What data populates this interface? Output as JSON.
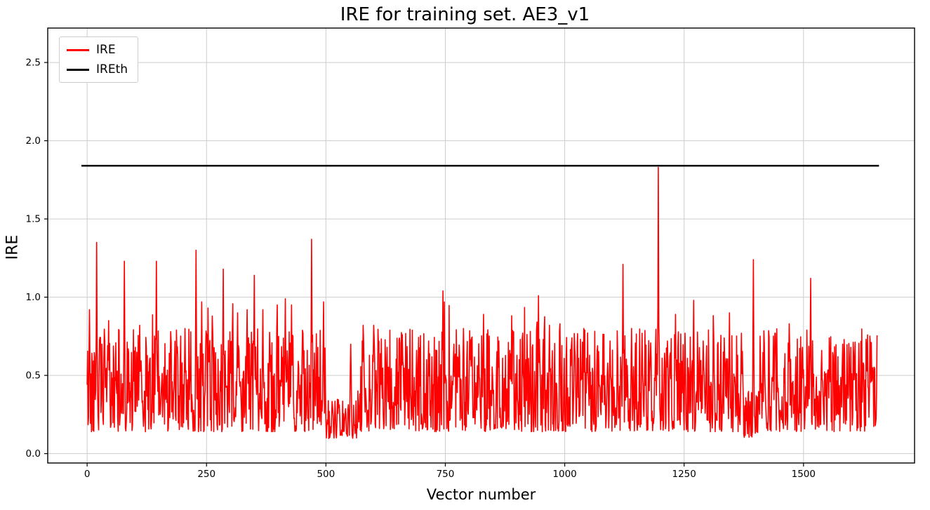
{
  "chart": {
    "title": "IRE for training set. AE3_v1",
    "xlabel": "Vector number",
    "ylabel": "IRE",
    "legend": {
      "items": [
        {
          "label": "IRE",
          "color": "#ff0000"
        },
        {
          "label": "IREth",
          "color": "#000000"
        }
      ]
    }
  },
  "chart_data": {
    "type": "line",
    "title": "IRE for training set. AE3_v1",
    "xlabel": "Vector number",
    "ylabel": "IRE",
    "xlim": [
      -82.5,
      1732.5
    ],
    "ylim": [
      -0.06,
      2.72
    ],
    "xticks": [
      0,
      250,
      500,
      750,
      1000,
      1250,
      1500
    ],
    "yticks": [
      0.0,
      0.5,
      1.0,
      1.5,
      2.0,
      2.5
    ],
    "grid": true,
    "grid_color": "#cccccc",
    "axes_edge_color": "#000000",
    "legend_position": "upper-left",
    "n_points": 1655,
    "series": [
      {
        "name": "IRE",
        "kind": "noisy-line",
        "color": "#ff0000",
        "line_width": 1.6,
        "seed": 42,
        "baseline_min": 0.14,
        "baseline_typical": 0.42,
        "baseline_max": 0.8,
        "spikes": [
          [
            5,
            0.92
          ],
          [
            20,
            1.35
          ],
          [
            45,
            0.85
          ],
          [
            78,
            1.23
          ],
          [
            110,
            0.82
          ],
          [
            145,
            1.23
          ],
          [
            175,
            0.78
          ],
          [
            205,
            0.8
          ],
          [
            228,
            1.3
          ],
          [
            240,
            0.97
          ],
          [
            262,
            0.88
          ],
          [
            285,
            1.18
          ],
          [
            315,
            0.9
          ],
          [
            335,
            0.92
          ],
          [
            350,
            1.14
          ],
          [
            368,
            0.92
          ],
          [
            398,
            0.95
          ],
          [
            415,
            0.99
          ],
          [
            428,
            0.95
          ],
          [
            452,
            0.77
          ],
          [
            470,
            1.37
          ],
          [
            495,
            0.97
          ],
          [
            552,
            0.7
          ],
          [
            578,
            0.82
          ],
          [
            600,
            0.82
          ],
          [
            628,
            0.68
          ],
          [
            660,
            0.76
          ],
          [
            690,
            0.66
          ],
          [
            715,
            0.72
          ],
          [
            745,
            1.04
          ],
          [
            768,
            0.7
          ],
          [
            788,
            0.8
          ],
          [
            805,
            0.74
          ],
          [
            830,
            0.89
          ],
          [
            862,
            0.72
          ],
          [
            885,
            0.66
          ],
          [
            912,
            0.77
          ],
          [
            945,
            1.01
          ],
          [
            968,
            0.82
          ],
          [
            990,
            0.83
          ],
          [
            1015,
            0.74
          ],
          [
            1040,
            0.8
          ],
          [
            1068,
            0.66
          ],
          [
            1095,
            0.72
          ],
          [
            1122,
            1.21
          ],
          [
            1140,
            0.8
          ],
          [
            1162,
            0.77
          ],
          [
            1196,
            1.83
          ],
          [
            1215,
            0.72
          ],
          [
            1232,
            0.89
          ],
          [
            1252,
            0.77
          ],
          [
            1270,
            0.98
          ],
          [
            1290,
            0.72
          ],
          [
            1312,
            0.75
          ],
          [
            1345,
            0.9
          ],
          [
            1370,
            0.77
          ],
          [
            1395,
            1.24
          ],
          [
            1418,
            0.7
          ],
          [
            1440,
            0.77
          ],
          [
            1470,
            0.83
          ],
          [
            1498,
            0.68
          ],
          [
            1515,
            1.12
          ],
          [
            1538,
            0.66
          ],
          [
            1562,
            0.63
          ],
          [
            1582,
            0.7
          ],
          [
            1605,
            0.64
          ],
          [
            1625,
            0.58
          ],
          [
            1645,
            0.55
          ]
        ],
        "dip_regions": [
          [
            500,
            565,
            0.38
          ],
          [
            1375,
            1405,
            0.45
          ]
        ]
      },
      {
        "name": "IREth",
        "kind": "threshold",
        "color": "#000000",
        "line_width": 2.6,
        "value": 1.84,
        "x_start": -12,
        "x_end": 1658
      }
    ]
  }
}
